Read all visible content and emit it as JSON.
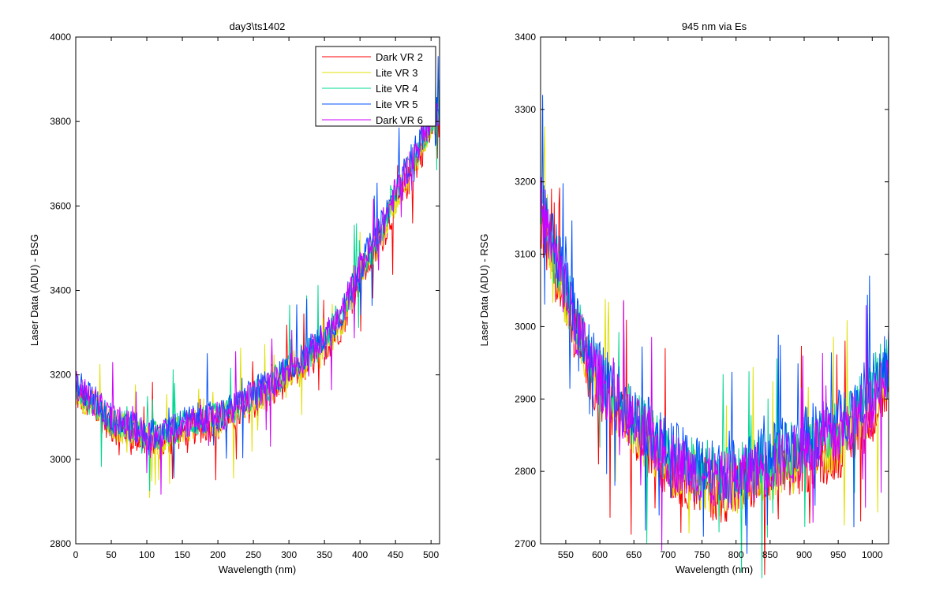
{
  "figure": {
    "background": "#ffffff"
  },
  "chart_data": [
    {
      "type": "line",
      "title": "day3\\ts1402",
      "xlabel": "Wavelength (nm)",
      "ylabel": "Laser Data (ADU) - BSG",
      "xlim": [
        0,
        512
      ],
      "ylim": [
        2800,
        4000
      ],
      "xticks": [
        0,
        50,
        100,
        150,
        200,
        250,
        300,
        350,
        400,
        450,
        500
      ],
      "yticks": [
        2800,
        3000,
        3200,
        3400,
        3600,
        3800,
        4000
      ],
      "grid": false,
      "legend": "top-right",
      "series": [
        {
          "name": "Dark VR 2",
          "color": "#ff0000",
          "x": [
            0,
            25,
            50,
            75,
            100,
            125,
            150,
            175,
            200,
            225,
            250,
            275,
            300,
            325,
            350,
            375,
            400,
            425,
            450,
            475,
            500,
            512
          ],
          "values": [
            3150,
            3120,
            3075,
            3060,
            3040,
            3035,
            3065,
            3075,
            3080,
            3100,
            3130,
            3150,
            3195,
            3220,
            3260,
            3320,
            3430,
            3500,
            3600,
            3680,
            3780,
            3800
          ]
        },
        {
          "name": "Lite VR 3",
          "color": "#e0e000",
          "x": [
            0,
            25,
            50,
            75,
            100,
            125,
            150,
            175,
            200,
            225,
            250,
            275,
            300,
            325,
            350,
            375,
            400,
            425,
            450,
            475,
            500,
            512
          ],
          "values": [
            3160,
            3125,
            3082,
            3068,
            3048,
            3045,
            3072,
            3082,
            3088,
            3108,
            3140,
            3160,
            3205,
            3232,
            3270,
            3330,
            3440,
            3510,
            3615,
            3695,
            3790,
            3810
          ]
        },
        {
          "name": "Lite VR 4",
          "color": "#00d890",
          "x": [
            0,
            25,
            50,
            75,
            100,
            125,
            150,
            175,
            200,
            225,
            250,
            275,
            300,
            325,
            350,
            375,
            400,
            425,
            450,
            475,
            500,
            512
          ],
          "values": [
            3170,
            3135,
            3092,
            3078,
            3058,
            3055,
            3082,
            3092,
            3098,
            3118,
            3150,
            3172,
            3215,
            3245,
            3282,
            3342,
            3452,
            3522,
            3628,
            3710,
            3805,
            3825
          ]
        },
        {
          "name": "Lite VR 5",
          "color": "#0050ff",
          "x": [
            0,
            25,
            50,
            75,
            100,
            125,
            150,
            175,
            200,
            225,
            250,
            275,
            300,
            325,
            350,
            375,
            400,
            425,
            450,
            475,
            500,
            512
          ],
          "values": [
            3180,
            3142,
            3098,
            3082,
            3062,
            3060,
            3088,
            3098,
            3104,
            3124,
            3158,
            3180,
            3222,
            3252,
            3290,
            3350,
            3460,
            3530,
            3638,
            3720,
            3815,
            3835
          ]
        },
        {
          "name": "Dark VR 6",
          "color": "#d000ff",
          "x": [
            0,
            25,
            50,
            75,
            100,
            125,
            150,
            175,
            200,
            225,
            250,
            275,
            300,
            325,
            350,
            375,
            400,
            425,
            450,
            475,
            500,
            512
          ],
          "values": [
            3175,
            3138,
            3095,
            3080,
            3060,
            3058,
            3085,
            3095,
            3100,
            3120,
            3154,
            3176,
            3218,
            3248,
            3286,
            3346,
            3456,
            3526,
            3633,
            3715,
            3810,
            3830
          ]
        }
      ]
    },
    {
      "type": "line",
      "title": "945 nm via Es",
      "xlabel": "Wavelength (nm)",
      "ylabel": "Laser Data (ADU) - RSG",
      "xlim": [
        513,
        1024
      ],
      "ylim": [
        2700,
        3400
      ],
      "xticks": [
        550,
        600,
        650,
        700,
        750,
        800,
        850,
        900,
        950,
        1000
      ],
      "yticks": [
        2700,
        2800,
        2900,
        3000,
        3100,
        3200,
        3300,
        3400
      ],
      "grid": false,
      "legend": "none",
      "series": [
        {
          "color": "#ff0000",
          "x": [
            513,
            530,
            550,
            575,
            600,
            625,
            650,
            675,
            700,
            725,
            750,
            775,
            800,
            825,
            850,
            875,
            900,
            925,
            950,
            975,
            1000,
            1024
          ],
          "values": [
            3150,
            3090,
            3030,
            2960,
            2910,
            2880,
            2850,
            2830,
            2805,
            2790,
            2780,
            2770,
            2775,
            2785,
            2790,
            2800,
            2810,
            2820,
            2830,
            2850,
            2880,
            2920
          ]
        },
        {
          "color": "#e0e000",
          "x": [
            513,
            530,
            550,
            575,
            600,
            625,
            650,
            675,
            700,
            725,
            750,
            775,
            800,
            825,
            850,
            875,
            900,
            925,
            950,
            975,
            1000,
            1024
          ],
          "values": [
            3160,
            3098,
            3038,
            2968,
            2918,
            2888,
            2858,
            2838,
            2813,
            2798,
            2788,
            2778,
            2783,
            2793,
            2800,
            2810,
            2820,
            2832,
            2842,
            2862,
            2892,
            2932
          ]
        },
        {
          "color": "#00d890",
          "x": [
            513,
            530,
            550,
            575,
            600,
            625,
            650,
            675,
            700,
            725,
            750,
            775,
            800,
            825,
            850,
            875,
            900,
            925,
            950,
            975,
            1000,
            1024
          ],
          "values": [
            3175,
            3110,
            3050,
            2980,
            2930,
            2900,
            2870,
            2850,
            2825,
            2810,
            2800,
            2790,
            2795,
            2805,
            2815,
            2825,
            2838,
            2850,
            2862,
            2882,
            2915,
            2955
          ]
        },
        {
          "color": "#0050ff",
          "x": [
            513,
            530,
            550,
            575,
            600,
            625,
            650,
            675,
            700,
            725,
            750,
            775,
            800,
            825,
            850,
            875,
            900,
            925,
            950,
            975,
            1000,
            1024
          ],
          "values": [
            3185,
            3118,
            3058,
            2988,
            2938,
            2908,
            2878,
            2858,
            2833,
            2818,
            2808,
            2800,
            2805,
            2815,
            2825,
            2835,
            2848,
            2860,
            2872,
            2892,
            2925,
            2965
          ]
        },
        {
          "color": "#d000ff",
          "x": [
            513,
            530,
            550,
            575,
            600,
            625,
            650,
            675,
            700,
            725,
            750,
            775,
            800,
            825,
            850,
            875,
            900,
            925,
            950,
            975,
            1000,
            1024
          ],
          "values": [
            3170,
            3105,
            3045,
            2975,
            2925,
            2895,
            2865,
            2845,
            2820,
            2805,
            2795,
            2785,
            2790,
            2800,
            2808,
            2818,
            2830,
            2842,
            2852,
            2872,
            2902,
            2942
          ]
        }
      ]
    }
  ]
}
